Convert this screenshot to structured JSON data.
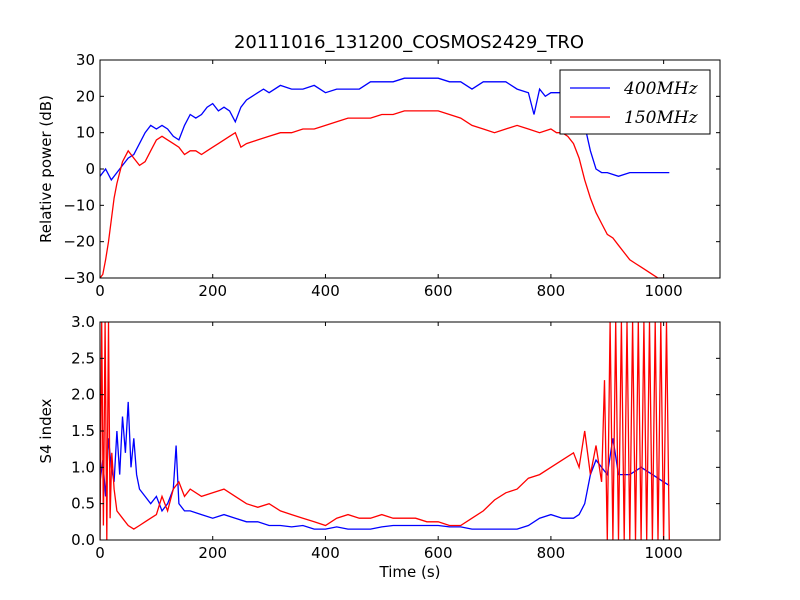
{
  "title": "20111016_131200_COSMOS2429_TRO",
  "chart_data": [
    {
      "type": "line",
      "title": "20111016_131200_COSMOS2429_TRO",
      "xlabel": "",
      "ylabel": "Relative power (dB)",
      "xlim": [
        0,
        1100
      ],
      "ylim": [
        -30,
        30
      ],
      "xticks": [
        "0",
        "200",
        "400",
        "600",
        "800",
        "1000"
      ],
      "yticks": [
        "−30",
        "−20",
        "−10",
        "0",
        "10",
        "20",
        "30"
      ],
      "legend": {
        "position": "top-right",
        "entries": [
          "400MHz",
          "150MHz"
        ]
      },
      "grid": false,
      "series": [
        {
          "name": "400MHz",
          "color": "#0000ff",
          "x": [
            0,
            10,
            20,
            30,
            40,
            50,
            60,
            70,
            80,
            90,
            100,
            110,
            120,
            130,
            140,
            150,
            160,
            170,
            180,
            190,
            200,
            210,
            220,
            230,
            240,
            250,
            260,
            270,
            280,
            290,
            300,
            320,
            340,
            360,
            380,
            400,
            420,
            440,
            460,
            480,
            500,
            520,
            540,
            560,
            580,
            600,
            620,
            640,
            660,
            680,
            700,
            720,
            740,
            760,
            770,
            780,
            790,
            800,
            810,
            820,
            830,
            840,
            850,
            860,
            870,
            880,
            890,
            900,
            920,
            940,
            960,
            980,
            1000,
            1010
          ],
          "y": [
            -2,
            0,
            -3,
            -1,
            1,
            3,
            4,
            7,
            10,
            12,
            11,
            12,
            11,
            9,
            8,
            12,
            15,
            14,
            15,
            17,
            18,
            16,
            17,
            16,
            13,
            17,
            19,
            20,
            21,
            22,
            21,
            23,
            22,
            22,
            23,
            21,
            22,
            22,
            22,
            24,
            24,
            24,
            25,
            25,
            25,
            25,
            24,
            24,
            22,
            24,
            24,
            24,
            22,
            21,
            15,
            22,
            20,
            21,
            21,
            21,
            21,
            21,
            17,
            12,
            5,
            0,
            -1,
            -1,
            -2,
            -1,
            -1,
            -1,
            -1,
            -1
          ]
        },
        {
          "name": "150MHz",
          "color": "#ff0000",
          "x": [
            0,
            5,
            10,
            15,
            20,
            25,
            30,
            40,
            50,
            60,
            70,
            80,
            90,
            100,
            110,
            120,
            130,
            140,
            150,
            160,
            170,
            180,
            190,
            200,
            210,
            220,
            230,
            240,
            250,
            260,
            280,
            300,
            320,
            340,
            360,
            380,
            400,
            420,
            440,
            460,
            480,
            500,
            520,
            540,
            560,
            580,
            600,
            620,
            640,
            660,
            680,
            700,
            720,
            740,
            760,
            780,
            800,
            810,
            820,
            830,
            840,
            850,
            860,
            870,
            880,
            890,
            900,
            910,
            920,
            930,
            940,
            950,
            960,
            970,
            980,
            990,
            1000
          ],
          "y": [
            -30,
            -29,
            -25,
            -20,
            -14,
            -8,
            -4,
            2,
            5,
            3,
            1,
            2,
            5,
            8,
            9,
            8,
            7,
            6,
            4,
            5,
            5,
            4,
            5,
            6,
            7,
            8,
            9,
            10,
            6,
            7,
            8,
            9,
            10,
            10,
            11,
            11,
            12,
            13,
            14,
            14,
            14,
            15,
            15,
            16,
            16,
            16,
            16,
            15,
            14,
            12,
            11,
            10,
            11,
            12,
            11,
            10,
            11,
            10,
            10,
            9,
            7,
            3,
            -3,
            -8,
            -12,
            -15,
            -18,
            -19,
            -21,
            -23,
            -25,
            -26,
            -27,
            -28,
            -29,
            -30,
            -30
          ]
        }
      ]
    },
    {
      "type": "line",
      "title": "",
      "xlabel": "Time (s)",
      "ylabel": "S4 index",
      "xlim": [
        0,
        1100
      ],
      "ylim": [
        0,
        3
      ],
      "xticks": [
        "0",
        "200",
        "400",
        "600",
        "800",
        "1000"
      ],
      "yticks": [
        "0.0",
        "0.5",
        "1.0",
        "1.5",
        "2.0",
        "2.5",
        "3.0"
      ],
      "grid": false,
      "series": [
        {
          "name": "400MHz",
          "color": "#0000ff",
          "x": [
            0,
            5,
            10,
            15,
            20,
            25,
            30,
            35,
            40,
            45,
            50,
            55,
            60,
            65,
            70,
            80,
            90,
            100,
            110,
            120,
            130,
            135,
            140,
            150,
            160,
            180,
            200,
            220,
            240,
            260,
            280,
            300,
            320,
            340,
            360,
            380,
            400,
            420,
            440,
            460,
            480,
            500,
            520,
            540,
            560,
            580,
            600,
            620,
            640,
            660,
            680,
            700,
            720,
            740,
            760,
            780,
            800,
            820,
            840,
            850,
            860,
            870,
            880,
            890,
            900,
            910,
            920,
            940,
            960,
            980,
            1000,
            1010
          ],
          "y": [
            0.8,
            1.1,
            0.6,
            1.4,
            1.0,
            0.8,
            1.5,
            0.9,
            1.7,
            1.2,
            1.9,
            1.0,
            1.4,
            0.9,
            0.7,
            0.6,
            0.5,
            0.6,
            0.4,
            0.5,
            0.7,
            1.3,
            0.5,
            0.4,
            0.4,
            0.35,
            0.3,
            0.35,
            0.3,
            0.25,
            0.25,
            0.2,
            0.2,
            0.18,
            0.2,
            0.15,
            0.15,
            0.18,
            0.15,
            0.15,
            0.15,
            0.18,
            0.2,
            0.2,
            0.2,
            0.2,
            0.2,
            0.18,
            0.18,
            0.15,
            0.15,
            0.15,
            0.15,
            0.15,
            0.2,
            0.3,
            0.35,
            0.3,
            0.3,
            0.35,
            0.5,
            0.9,
            1.1,
            1.0,
            0.9,
            1.4,
            0.9,
            0.9,
            1.0,
            0.9,
            0.8,
            0.75
          ]
        },
        {
          "name": "150MHz",
          "color": "#ff0000",
          "x": [
            0,
            3,
            6,
            9,
            12,
            15,
            18,
            21,
            25,
            30,
            40,
            50,
            60,
            70,
            80,
            90,
            100,
            110,
            120,
            130,
            140,
            150,
            160,
            180,
            200,
            220,
            240,
            260,
            280,
            300,
            320,
            340,
            360,
            380,
            400,
            420,
            440,
            460,
            480,
            500,
            520,
            540,
            560,
            580,
            600,
            620,
            640,
            660,
            680,
            700,
            720,
            740,
            760,
            780,
            800,
            820,
            840,
            850,
            860,
            870,
            880,
            890,
            895,
            900,
            905,
            910,
            915,
            920,
            925,
            930,
            935,
            940,
            945,
            950,
            955,
            960,
            965,
            970,
            975,
            980,
            985,
            990,
            995,
            1000,
            1005,
            1010
          ],
          "y": [
            0.0,
            3.0,
            0.2,
            3.0,
            0.0,
            3.0,
            0.3,
            1.2,
            0.7,
            0.4,
            0.3,
            0.2,
            0.15,
            0.2,
            0.25,
            0.3,
            0.35,
            0.6,
            0.4,
            0.7,
            0.8,
            0.6,
            0.7,
            0.6,
            0.65,
            0.7,
            0.6,
            0.5,
            0.45,
            0.5,
            0.4,
            0.35,
            0.3,
            0.25,
            0.2,
            0.3,
            0.35,
            0.3,
            0.3,
            0.35,
            0.3,
            0.3,
            0.3,
            0.25,
            0.25,
            0.2,
            0.2,
            0.3,
            0.4,
            0.55,
            0.65,
            0.7,
            0.85,
            0.9,
            1.0,
            1.1,
            1.2,
            1.0,
            1.5,
            0.9,
            1.3,
            0.8,
            2.2,
            0.0,
            3.0,
            0.0,
            3.0,
            0.0,
            3.0,
            0.0,
            3.0,
            0.0,
            3.0,
            0.0,
            3.0,
            0.0,
            3.0,
            0.0,
            3.0,
            0.0,
            3.0,
            0.0,
            3.0,
            0.0,
            3.0,
            0.0
          ]
        }
      ]
    }
  ]
}
